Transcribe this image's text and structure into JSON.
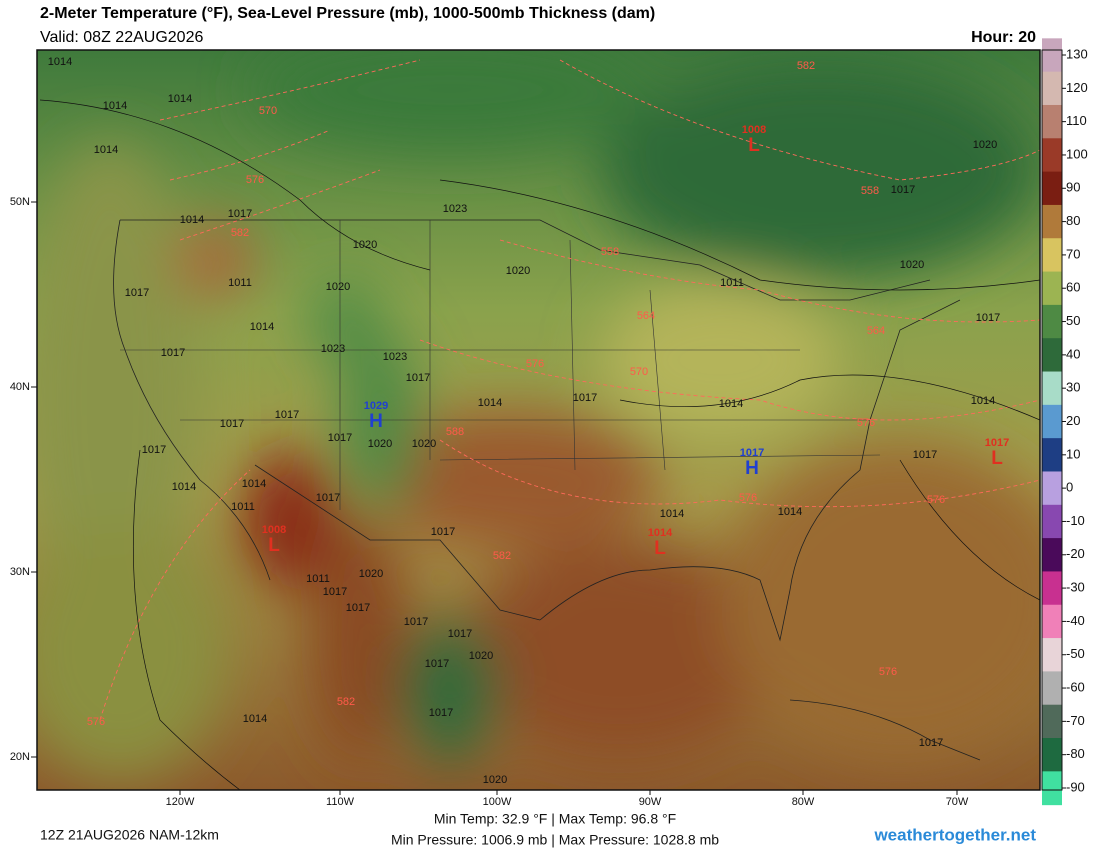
{
  "header": {
    "title": "2-Meter Temperature (°F), Sea-Level Pressure (mb), 1000-500mb Thickness (dam)",
    "valid": "Valid: 08Z 22AUG2026",
    "hour": "Hour: 20"
  },
  "axes": {
    "lat_labels": [
      "50N",
      "40N",
      "30N",
      "20N"
    ],
    "lon_labels": [
      "120W",
      "110W",
      "100W",
      "90W",
      "80W",
      "70W"
    ]
  },
  "colorbar": {
    "ticks": [
      130,
      120,
      110,
      100,
      90,
      80,
      70,
      60,
      50,
      40,
      30,
      20,
      10,
      0,
      -10,
      -20,
      -30,
      -40,
      -50,
      -60,
      -70,
      -80,
      -90
    ],
    "colors": [
      "#c8a6bc",
      "#d4b8b0",
      "#b88070",
      "#9a3a28",
      "#7a1e12",
      "#b07a3a",
      "#d8c460",
      "#9cb452",
      "#4e8a44",
      "#2e6a3a",
      "#a8dcc8",
      "#5a9ad0",
      "#1e3e84",
      "#b8a0e0",
      "#8848b0",
      "#4a0a5a",
      "#c83090",
      "#f080b8",
      "#e8d4d8",
      "#b0b0b0",
      "#506a5a",
      "#1e6a40",
      "#40e0a0"
    ]
  },
  "isobars": [
    "1014",
    "1014",
    "1014",
    "1014",
    "1014",
    "1017",
    "1023",
    "1020",
    "1020",
    "1011",
    "1017",
    "1020",
    "1014",
    "1023",
    "1023",
    "1017",
    "1017",
    "1014",
    "1017",
    "1017",
    "1017",
    "1017",
    "1020",
    "1020",
    "1017",
    "1014",
    "1014",
    "1017",
    "1011",
    "1017",
    "1014",
    "1014",
    "1014",
    "1011",
    "1020",
    "1017",
    "1020",
    "1017",
    "1014",
    "1017",
    "1011",
    "1020",
    "1017",
    "1017",
    "1017",
    "1017",
    "1020",
    "1017",
    "1017",
    "1014",
    "1020",
    "1017"
  ],
  "thickness": [
    "570",
    "576",
    "582",
    "582",
    "558",
    "558",
    "564",
    "564",
    "576",
    "570",
    "588",
    "576",
    "582",
    "576",
    "576",
    "576",
    "582",
    "576"
  ],
  "centers": [
    {
      "letter": "L",
      "pressure": "1008",
      "color": "#e03020"
    },
    {
      "letter": "H",
      "pressure": "1029",
      "color": "#2040d0"
    },
    {
      "letter": "H",
      "pressure": "1017",
      "color": "#2040d0"
    },
    {
      "letter": "L",
      "pressure": "1008",
      "color": "#e03020"
    },
    {
      "letter": "L",
      "pressure": "1014",
      "color": "#e03020"
    },
    {
      "letter": "L",
      "pressure": "1017",
      "color": "#e03020"
    }
  ],
  "footer": {
    "run": "12Z 21AUG2026 NAM-12km",
    "temps": "Min Temp:  32.9 °F | Max Temp:  96.8 °F",
    "pressures": "Min Pressure: 1006.9 mb | Max Pressure: 1028.8 mb",
    "site": "weathertogether.net"
  }
}
